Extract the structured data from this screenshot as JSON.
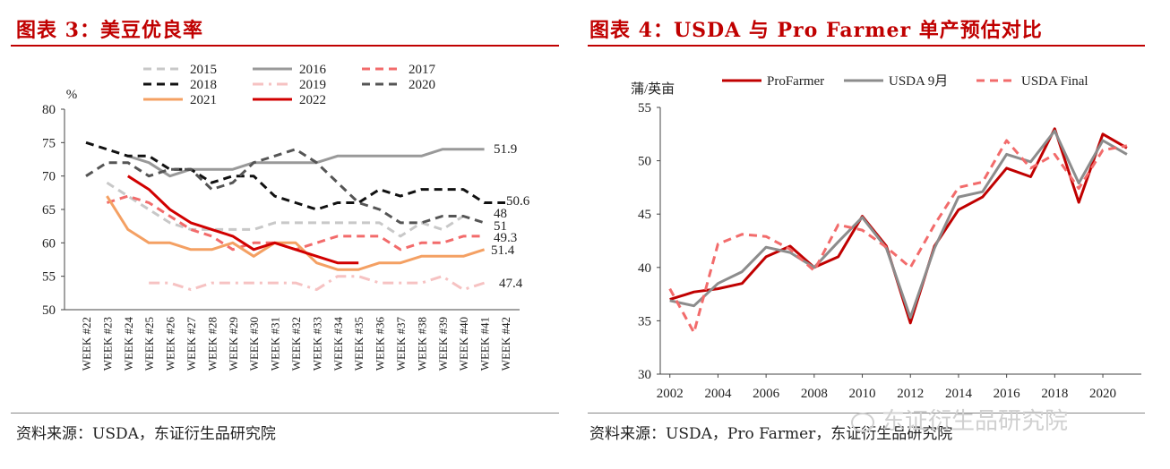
{
  "left_panel": {
    "title": "图表 3：美豆优良率",
    "source": "资料来源：USDA，东证衍生品研究院"
  },
  "right_panel": {
    "title": "图表 4：USDA 与 Pro Farmer 单产预估对比",
    "source": "资料来源：USDA，Pro Farmer，东证衍生品研究院"
  },
  "watermark": "东证衍生品研究院",
  "chart_data": [
    {
      "type": "line",
      "title": "",
      "ylabel": "%",
      "xlabel": "",
      "ylim": [
        50,
        80
      ],
      "yticks": [
        50,
        55,
        60,
        65,
        70,
        75,
        80
      ],
      "grid": false,
      "legend_position": "top",
      "categories": [
        "WEEK #22",
        "WEEK #23",
        "WEEK #24",
        "WEEK #25",
        "WEEK #26",
        "WEEK #27",
        "WEEK #28",
        "WEEK #29",
        "WEEK #30",
        "WEEK #31",
        "WEEK #32",
        "WEEK #33",
        "WEEK #34",
        "WEEK #35",
        "WEEK #36",
        "WEEK #37",
        "WEEK #38",
        "WEEK #39",
        "WEEK #40",
        "WEEK #41",
        "WEEK #42"
      ],
      "series": [
        {
          "name": "2015",
          "color": "#c8c8c8",
          "dash": "dash",
          "width": 3,
          "values": [
            null,
            69,
            67,
            65,
            63,
            62,
            62,
            62,
            62,
            63,
            63,
            63,
            63,
            63,
            63,
            61,
            63,
            62,
            64,
            null,
            null
          ]
        },
        {
          "name": "2016",
          "color": "#999999",
          "dash": "solid",
          "width": 3,
          "values": [
            null,
            null,
            73,
            72,
            70,
            71,
            71,
            71,
            72,
            72,
            72,
            72,
            73,
            73,
            73,
            73,
            73,
            74,
            74,
            74,
            null
          ]
        },
        {
          "name": "2017",
          "color": "#f26b6b",
          "dash": "dash",
          "width": 3,
          "values": [
            null,
            66,
            67,
            66,
            64,
            62,
            61,
            59,
            60,
            60,
            59,
            60,
            61,
            61,
            61,
            59,
            60,
            60,
            61,
            61,
            null
          ]
        },
        {
          "name": "2018",
          "color": "#111111",
          "dash": "dash",
          "width": 3,
          "values": [
            75,
            74,
            73,
            73,
            71,
            71,
            69,
            70,
            70,
            67,
            66,
            65,
            66,
            66,
            68,
            67,
            68,
            68,
            68,
            66,
            66
          ]
        },
        {
          "name": "2019",
          "color": "#f6c2c2",
          "dash": "dashdot",
          "width": 3,
          "values": [
            null,
            null,
            null,
            54,
            54,
            53,
            54,
            54,
            54,
            54,
            54,
            53,
            55,
            55,
            54,
            54,
            54,
            55,
            53,
            54,
            null
          ]
        },
        {
          "name": "2020",
          "color": "#555555",
          "dash": "dash",
          "width": 3,
          "values": [
            70,
            72,
            72,
            70,
            71,
            71,
            68,
            69,
            72,
            73,
            74,
            72,
            69,
            66,
            65,
            63,
            63,
            64,
            64,
            63,
            null
          ]
        },
        {
          "name": "2021",
          "color": "#f4a063",
          "dash": "solid",
          "width": 3,
          "values": [
            null,
            67,
            62,
            60,
            60,
            59,
            59,
            60,
            58,
            60,
            60,
            57,
            56,
            56,
            57,
            57,
            58,
            58,
            58,
            59,
            null
          ]
        },
        {
          "name": "2022",
          "color": "#d10000",
          "dash": "solid",
          "width": 3,
          "values": [
            null,
            null,
            70,
            68,
            65,
            63,
            62,
            61,
            59,
            60,
            59,
            58,
            57,
            57,
            null,
            null,
            null,
            null,
            null,
            null,
            null
          ]
        }
      ],
      "end_labels": [
        {
          "text": "51.9",
          "series": "2016"
        },
        {
          "text": "50.6",
          "series": "2018"
        },
        {
          "text": "48",
          "series": "2015"
        },
        {
          "text": "51",
          "series": "2020"
        },
        {
          "text": "49.3",
          "series": "2017"
        },
        {
          "text": "51.4",
          "series": "2021"
        },
        {
          "text": "47.4",
          "series": "2019"
        }
      ]
    },
    {
      "type": "line",
      "title": "",
      "ylabel": "蒲/英亩",
      "xlabel": "",
      "ylim": [
        30,
        55
      ],
      "yticks": [
        30,
        35,
        40,
        45,
        50,
        55
      ],
      "xticks": [
        2002,
        2004,
        2006,
        2008,
        2010,
        2012,
        2014,
        2016,
        2018,
        2020
      ],
      "grid": false,
      "legend_position": "top",
      "x": [
        2002,
        2003,
        2004,
        2005,
        2006,
        2007,
        2008,
        2009,
        2010,
        2011,
        2012,
        2013,
        2014,
        2015,
        2016,
        2017,
        2018,
        2019,
        2020,
        2021
      ],
      "series": [
        {
          "name": "ProFarmer",
          "color": "#c00000",
          "dash": "solid",
          "width": 3,
          "values": [
            37.0,
            37.7,
            38.0,
            38.5,
            41.0,
            42.0,
            40.0,
            41.0,
            44.8,
            42.0,
            34.8,
            42.0,
            45.4,
            46.6,
            49.3,
            48.5,
            53.0,
            46.1,
            52.5,
            51.2
          ]
        },
        {
          "name": "USDA 9月",
          "color": "#8c8c8c",
          "dash": "solid",
          "width": 3,
          "values": [
            36.9,
            36.4,
            38.5,
            39.6,
            41.9,
            41.4,
            40.0,
            42.4,
            44.7,
            41.8,
            35.3,
            41.8,
            46.6,
            47.1,
            50.6,
            49.9,
            52.8,
            47.9,
            51.9,
            50.6
          ]
        },
        {
          "name": "USDA Final",
          "color": "#f26b6b",
          "dash": "dash",
          "width": 3,
          "values": [
            38.0,
            33.9,
            42.2,
            43.1,
            42.9,
            41.7,
            39.7,
            44.0,
            43.5,
            41.9,
            40.0,
            44.0,
            47.5,
            48.0,
            51.9,
            49.3,
            50.6,
            47.4,
            51.0,
            51.4
          ]
        }
      ]
    }
  ]
}
